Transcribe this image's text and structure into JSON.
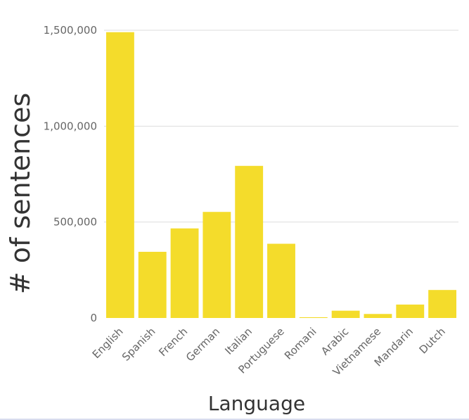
{
  "chart_data": {
    "type": "bar",
    "categories": [
      "English",
      "Spanish",
      "French",
      "German",
      "Italian",
      "Portuguese",
      "Romani",
      "Arabic",
      "Vietnamese",
      "Mandarin",
      "Dutch"
    ],
    "values": [
      1490000,
      345000,
      467000,
      553000,
      793000,
      387000,
      4000,
      38000,
      21000,
      70000,
      146000
    ],
    "xlabel": "Language",
    "ylabel": "# of sentences",
    "ylim": [
      0,
      1500000
    ],
    "yticks": [
      0,
      500000,
      1000000,
      1500000
    ],
    "ytick_labels": [
      "0",
      "500,000",
      "1,000,000",
      "1,500,000"
    ],
    "grid": true,
    "bar_color": "#f4dc2b"
  }
}
